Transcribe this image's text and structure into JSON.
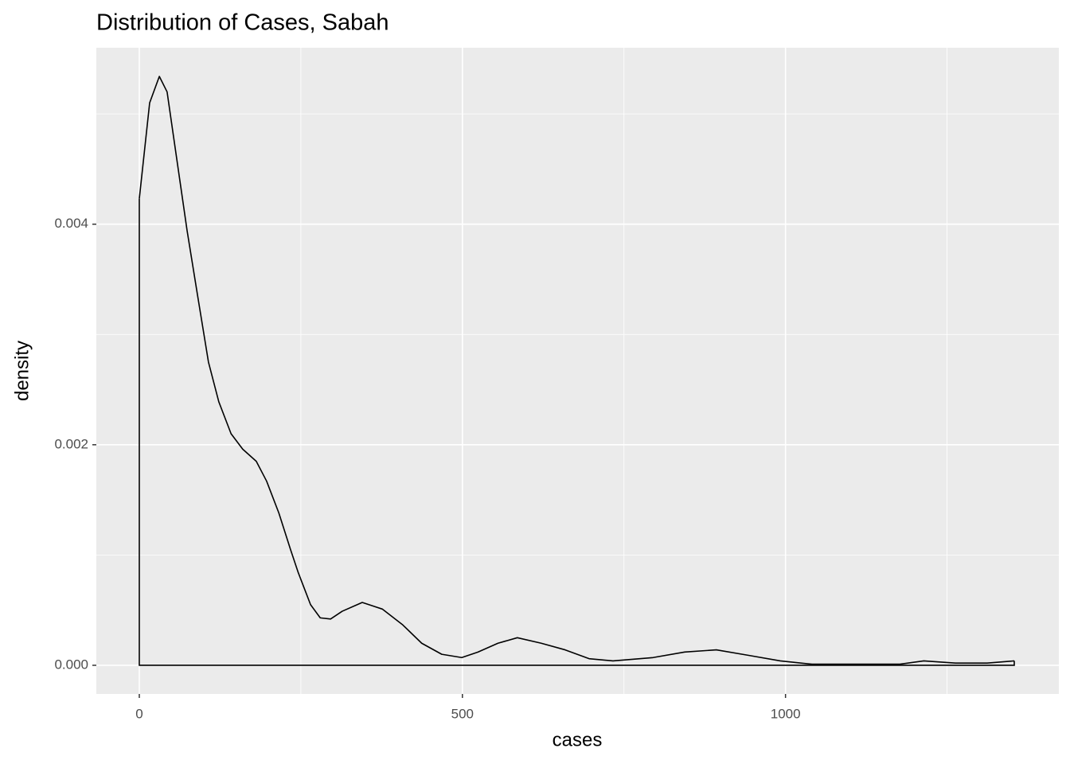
{
  "chart_data": {
    "type": "density",
    "title": "Distribution of Cases, Sabah",
    "x_label": "cases",
    "y_label": "density",
    "x": [
      0,
      16,
      31,
      43,
      58,
      74,
      90,
      107,
      123,
      142,
      160,
      181,
      197,
      216,
      234,
      246,
      265,
      280,
      296,
      314,
      345,
      376,
      407,
      437,
      468,
      499,
      524,
      555,
      585,
      622,
      659,
      696,
      733,
      795,
      844,
      893,
      943,
      992,
      1041,
      1115,
      1177,
      1214,
      1263,
      1312,
      1354
    ],
    "values": [
      0.00423,
      0.0051,
      0.00534,
      0.0052,
      0.00459,
      0.00394,
      0.00336,
      0.00275,
      0.00239,
      0.0021,
      0.00196,
      0.00185,
      0.00167,
      0.00138,
      0.00105,
      0.00084,
      0.00055,
      0.00043,
      0.00042,
      0.00049,
      0.00057,
      0.00051,
      0.00037,
      0.0002,
      0.0001,
      7e-05,
      0.00012,
      0.0002,
      0.00025,
      0.0002,
      0.00014,
      6e-05,
      4e-05,
      7e-05,
      0.00012,
      0.00014,
      9e-05,
      4e-05,
      1e-05,
      1e-05,
      1e-05,
      4e-05,
      2e-05,
      2e-05,
      4e-05
    ],
    "color": "#000000",
    "xlim": [
      -66.5,
      1423
    ],
    "ylim": [
      -0.00026,
      0.0056
    ],
    "xticks": [
      0,
      500,
      1000
    ],
    "yticks": [
      {
        "value": 0,
        "label": "0.000"
      },
      0.002,
      0.004
    ],
    "x_minor_ticks": [
      250,
      750,
      1250
    ],
    "y_minor_ticks": [
      0.001,
      0.003,
      0.005
    ],
    "grid": true
  }
}
